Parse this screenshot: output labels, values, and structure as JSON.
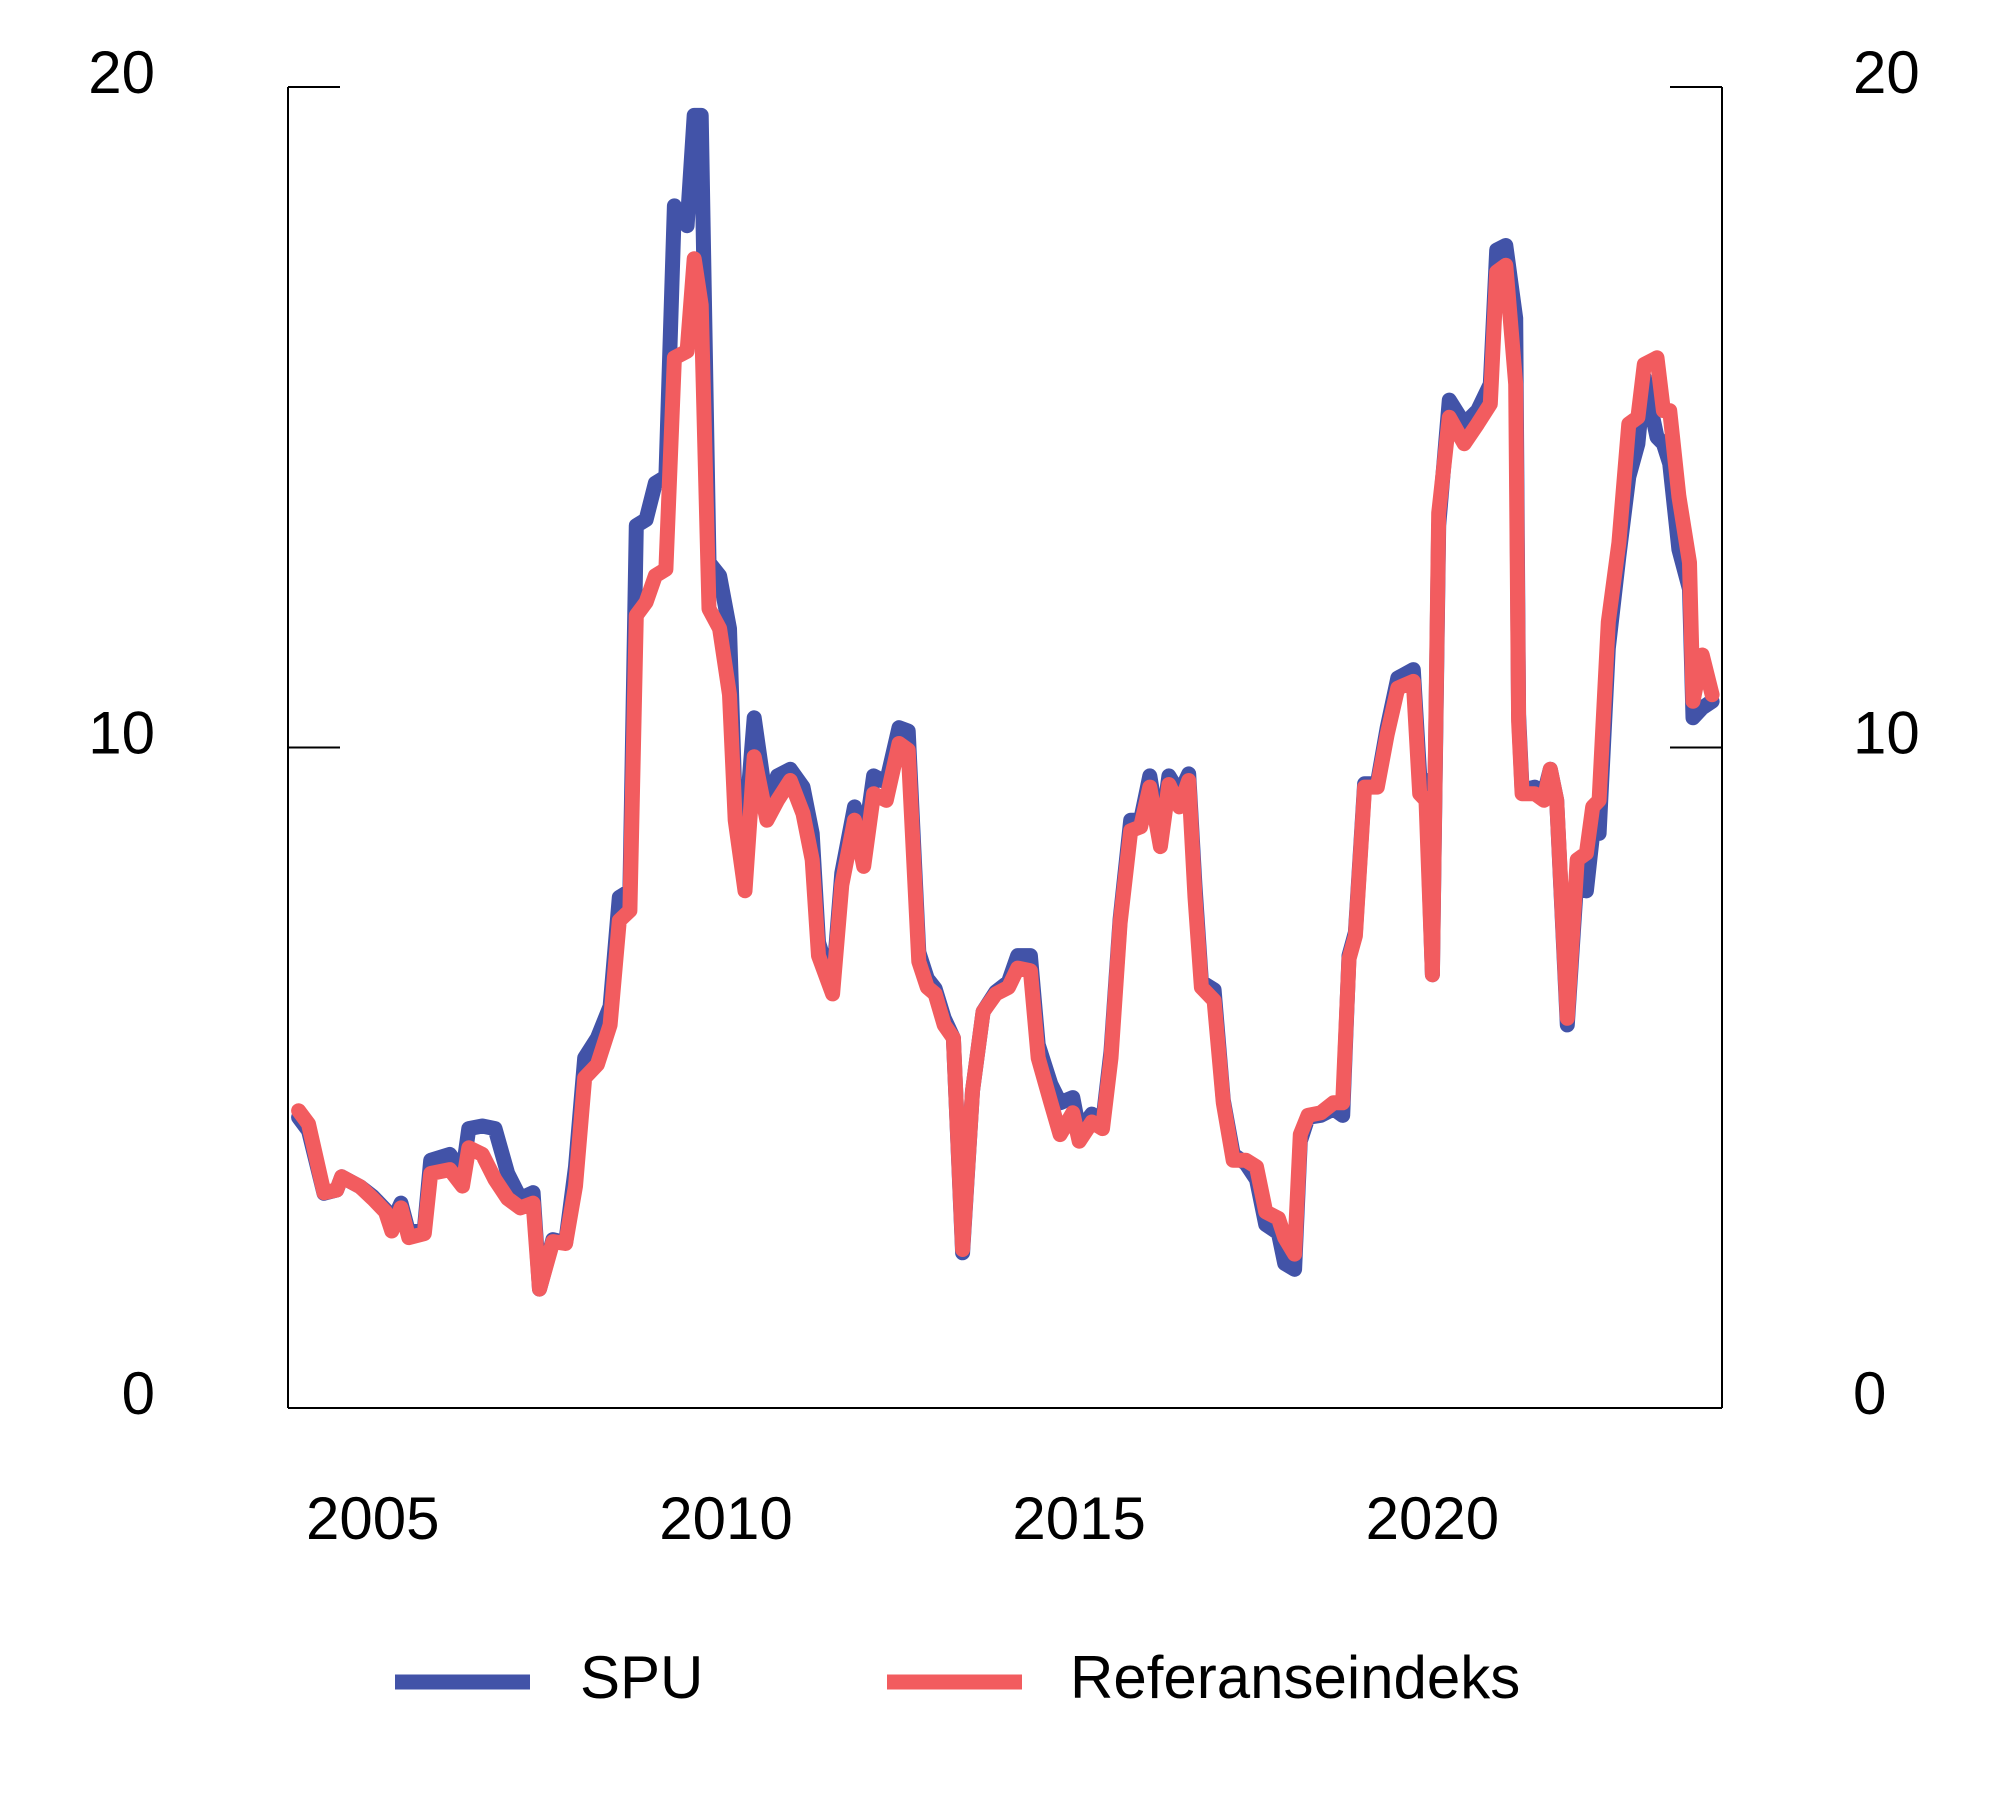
{
  "chart_data": {
    "type": "line",
    "x": [
      2003.95,
      2004.09,
      2004.31,
      2004.49,
      2004.56,
      2004.82,
      2005.0,
      2005.18,
      2005.27,
      2005.4,
      2005.51,
      2005.73,
      2005.82,
      2006.09,
      2006.27,
      2006.36,
      2006.55,
      2006.73,
      2006.91,
      2007.09,
      2007.27,
      2007.36,
      2007.55,
      2007.73,
      2007.87,
      2008.0,
      2008.18,
      2008.36,
      2008.49,
      2008.64,
      2008.73,
      2008.87,
      2009.0,
      2009.15,
      2009.27,
      2009.45,
      2009.55,
      2009.65,
      2009.76,
      2009.91,
      2010.05,
      2010.13,
      2010.27,
      2010.4,
      2010.58,
      2010.73,
      2010.91,
      2011.09,
      2011.22,
      2011.31,
      2011.51,
      2011.64,
      2011.82,
      2011.95,
      2012.09,
      2012.27,
      2012.45,
      2012.58,
      2012.73,
      2012.85,
      2012.96,
      2013.09,
      2013.22,
      2013.35,
      2013.49,
      2013.64,
      2013.82,
      2014.0,
      2014.13,
      2014.31,
      2014.42,
      2014.6,
      2014.73,
      2014.91,
      2015.0,
      2015.18,
      2015.33,
      2015.45,
      2015.58,
      2015.73,
      2015.87,
      2016.0,
      2016.15,
      2016.27,
      2016.42,
      2016.55,
      2016.64,
      2016.73,
      2016.91,
      2017.04,
      2017.18,
      2017.36,
      2017.51,
      2017.64,
      2017.82,
      2017.91,
      2018.05,
      2018.13,
      2018.24,
      2018.42,
      2018.6,
      2018.73,
      2018.82,
      2018.91,
      2019.04,
      2019.22,
      2019.36,
      2019.51,
      2019.73,
      2019.82,
      2019.91,
      2020.0,
      2020.09,
      2020.24,
      2020.45,
      2020.64,
      2020.82,
      2020.91,
      2021.04,
      2021.18,
      2021.22,
      2021.27,
      2021.45,
      2021.58,
      2021.67,
      2021.76,
      2021.91,
      2022.05,
      2022.18,
      2022.27,
      2022.36,
      2022.49,
      2022.64,
      2022.78,
      2022.91,
      2023.0,
      2023.18,
      2023.27,
      2023.36,
      2023.49,
      2023.64,
      2023.69,
      2023.82,
      2023.96
    ],
    "series": [
      {
        "name": "SPU",
        "color": "#4253a8",
        "values": [
          4.4,
          4.2,
          3.25,
          3.3,
          3.5,
          3.35,
          3.2,
          3.0,
          2.8,
          3.1,
          2.65,
          2.7,
          3.75,
          3.84,
          3.55,
          4.23,
          4.27,
          4.23,
          3.55,
          3.17,
          3.26,
          1.8,
          2.55,
          2.5,
          3.65,
          5.3,
          5.6,
          6.08,
          7.73,
          7.83,
          13.36,
          13.45,
          14.0,
          14.1,
          18.2,
          17.9,
          19.57,
          19.57,
          12.8,
          12.6,
          11.8,
          9.1,
          8.7,
          10.45,
          9.1,
          9.57,
          9.67,
          9.4,
          8.7,
          7.05,
          6.35,
          8.1,
          9.1,
          8.5,
          9.57,
          9.47,
          10.3,
          10.25,
          6.9,
          6.5,
          6.35,
          5.9,
          5.6,
          2.35,
          4.8,
          6.0,
          6.3,
          6.45,
          6.85,
          6.85,
          5.5,
          4.9,
          4.62,
          4.7,
          4.2,
          4.45,
          4.3,
          5.4,
          7.4,
          8.9,
          8.9,
          9.57,
          8.6,
          9.57,
          9.3,
          9.6,
          7.9,
          6.45,
          6.33,
          4.66,
          3.84,
          3.7,
          3.46,
          2.78,
          2.65,
          2.19,
          2.1,
          4.04,
          4.4,
          4.43,
          4.53,
          4.43,
          6.85,
          7.2,
          9.45,
          9.45,
          10.3,
          11.05,
          11.18,
          9.57,
          9.47,
          6.56,
          13.36,
          15.26,
          14.9,
          15.1,
          15.5,
          17.53,
          17.6,
          16.5,
          10.5,
          9.35,
          9.4,
          9.3,
          9.67,
          9.2,
          5.8,
          8.1,
          7.83,
          8.7,
          8.7,
          11.5,
          12.9,
          14.1,
          14.6,
          15.6,
          14.7,
          14.6,
          14.3,
          13.0,
          12.4,
          10.45,
          10.6,
          10.7
        ]
      },
      {
        "name": "Referanseindeks",
        "color": "#f25c5f",
        "values": [
          4.5,
          4.3,
          3.26,
          3.3,
          3.5,
          3.35,
          3.17,
          2.97,
          2.68,
          3.03,
          2.58,
          2.64,
          3.55,
          3.61,
          3.36,
          3.94,
          3.84,
          3.46,
          3.17,
          3.03,
          3.1,
          1.8,
          2.52,
          2.49,
          3.36,
          5.0,
          5.2,
          5.8,
          7.38,
          7.53,
          12.0,
          12.2,
          12.6,
          12.7,
          15.9,
          16.0,
          17.4,
          16.7,
          12.1,
          11.8,
          10.8,
          8.9,
          7.83,
          9.86,
          8.9,
          9.2,
          9.5,
          9.0,
          8.3,
          6.85,
          6.27,
          7.92,
          8.9,
          8.2,
          9.3,
          9.2,
          10.06,
          9.96,
          6.76,
          6.37,
          6.27,
          5.8,
          5.6,
          2.4,
          4.8,
          6.0,
          6.27,
          6.37,
          6.66,
          6.62,
          5.3,
          4.62,
          4.14,
          4.47,
          4.04,
          4.33,
          4.23,
          5.3,
          7.34,
          8.74,
          8.8,
          9.4,
          8.5,
          9.44,
          9.1,
          9.5,
          7.73,
          6.37,
          6.17,
          4.62,
          3.75,
          3.75,
          3.65,
          2.97,
          2.87,
          2.58,
          2.33,
          4.14,
          4.43,
          4.47,
          4.62,
          4.62,
          6.8,
          7.15,
          9.4,
          9.4,
          10.2,
          10.9,
          11.0,
          9.3,
          9.2,
          6.56,
          13.55,
          15.0,
          14.6,
          14.9,
          15.2,
          17.2,
          17.3,
          15.5,
          10.4,
          9.3,
          9.3,
          9.2,
          9.67,
          9.2,
          5.9,
          8.3,
          8.4,
          9.1,
          9.2,
          11.9,
          13.1,
          14.9,
          15.0,
          15.8,
          15.9,
          15.1,
          15.1,
          13.8,
          12.8,
          10.7,
          11.4,
          10.8
        ]
      }
    ],
    "xlim": [
      2003.8,
      2024.1
    ],
    "xticks": [
      2005,
      2010,
      2015,
      2020
    ],
    "ylim": [
      0,
      20
    ],
    "yticks": [
      0,
      10,
      20
    ]
  }
}
